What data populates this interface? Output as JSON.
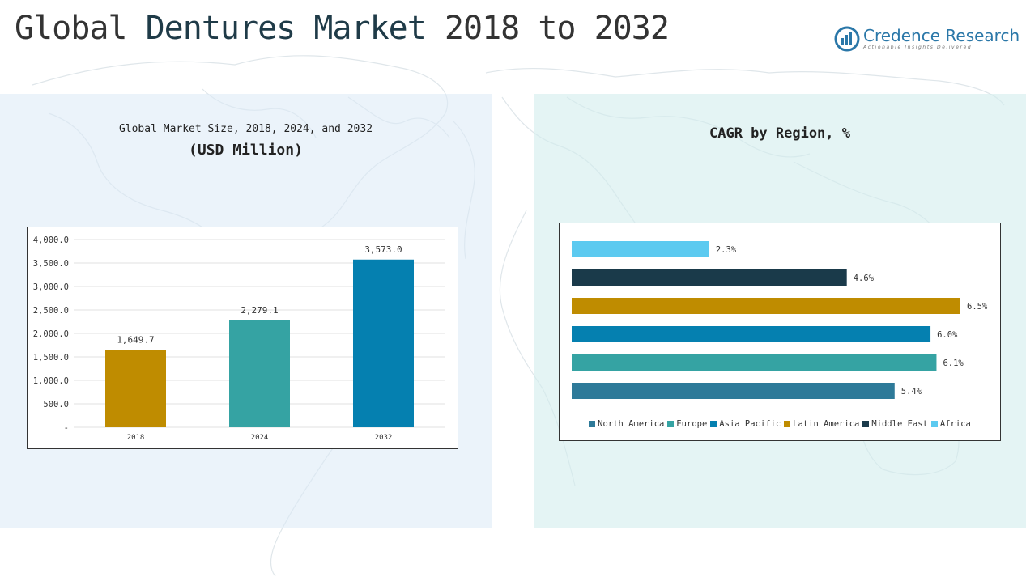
{
  "header": {
    "title_part1": "Global",
    "title_part2": "Dentures Market",
    "title_part3": "2018 to 2032"
  },
  "logo": {
    "name": "Credence Research",
    "tagline": "Actionable Insights Delivered"
  },
  "left_panel": {
    "subtitle": "Global Market Size, 2018, 2024, and 2032",
    "unit": "(USD Million)"
  },
  "right_panel": {
    "title": "CAGR by Region, %"
  },
  "chart_data": [
    {
      "type": "bar",
      "title": "Global Market Size, 2018, 2024, and 2032",
      "ylabel": "(USD Million)",
      "categories": [
        "2018",
        "2024",
        "2032"
      ],
      "values": [
        1649.7,
        2279.1,
        3573.0
      ],
      "value_labels": [
        "1,649.7",
        "2,279.1",
        "3,573.0"
      ],
      "colors": [
        "#bf8c00",
        "#35a3a3",
        "#0580b0"
      ],
      "ylim": [
        0,
        4000
      ],
      "yticks": [
        0,
        500,
        1000,
        1500,
        2000,
        2500,
        3000,
        3500,
        4000
      ],
      "ytick_labels": [
        "-",
        "500.0",
        "1,000.0",
        "1,500.0",
        "2,000.0",
        "2,500.0",
        "3,000.0",
        "3,500.0",
        "4,000.0"
      ],
      "grid": true
    },
    {
      "type": "bar",
      "orientation": "horizontal",
      "title": "CAGR by Region, %",
      "categories": [
        "North America",
        "Europe",
        "Asia Pacific",
        "Latin America",
        "Middle East",
        "Africa"
      ],
      "values": [
        5.4,
        6.1,
        6.0,
        6.5,
        4.6,
        2.3
      ],
      "value_labels": [
        "5.4%",
        "6.1%",
        "6.0%",
        "6.5%",
        "4.6%",
        "2.3%"
      ],
      "colors": [
        "#2e7a99",
        "#35a3a3",
        "#0580b0",
        "#bf8c00",
        "#1a3a4a",
        "#5ccaf0"
      ],
      "xlim": [
        0,
        6.5
      ],
      "legend": "bottom",
      "grid": false
    }
  ]
}
